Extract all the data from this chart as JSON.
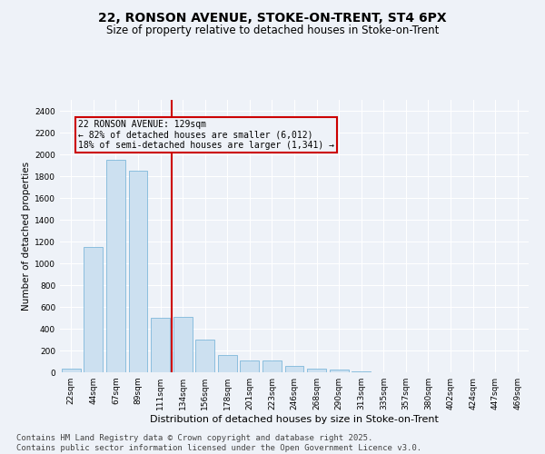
{
  "title_line1": "22, RONSON AVENUE, STOKE-ON-TRENT, ST4 6PX",
  "title_line2": "Size of property relative to detached houses in Stoke-on-Trent",
  "xlabel": "Distribution of detached houses by size in Stoke-on-Trent",
  "ylabel": "Number of detached properties",
  "categories": [
    "22sqm",
    "44sqm",
    "67sqm",
    "89sqm",
    "111sqm",
    "134sqm",
    "156sqm",
    "178sqm",
    "201sqm",
    "223sqm",
    "246sqm",
    "268sqm",
    "290sqm",
    "313sqm",
    "335sqm",
    "357sqm",
    "380sqm",
    "402sqm",
    "424sqm",
    "447sqm",
    "469sqm"
  ],
  "values": [
    30,
    1150,
    1950,
    1850,
    500,
    510,
    300,
    155,
    105,
    105,
    55,
    35,
    25,
    5,
    2,
    0,
    2,
    0,
    0,
    0,
    0
  ],
  "bar_color": "#cce0f0",
  "bar_edge_color": "#6baed6",
  "vline_x_index": 5,
  "vline_color": "#cc0000",
  "annotation_text": "22 RONSON AVENUE: 129sqm\n← 82% of detached houses are smaller (6,012)\n18% of semi-detached houses are larger (1,341) →",
  "annotation_box_color": "#cc0000",
  "ylim": [
    0,
    2500
  ],
  "yticks": [
    0,
    200,
    400,
    600,
    800,
    1000,
    1200,
    1400,
    1600,
    1800,
    2000,
    2200,
    2400
  ],
  "background_color": "#eef2f8",
  "grid_color": "#ffffff",
  "footer_text": "Contains HM Land Registry data © Crown copyright and database right 2025.\nContains public sector information licensed under the Open Government Licence v3.0.",
  "title_fontsize": 10,
  "subtitle_fontsize": 8.5,
  "xlabel_fontsize": 8,
  "ylabel_fontsize": 7.5,
  "tick_fontsize": 6.5,
  "footer_fontsize": 6.5,
  "ann_fontsize": 7
}
